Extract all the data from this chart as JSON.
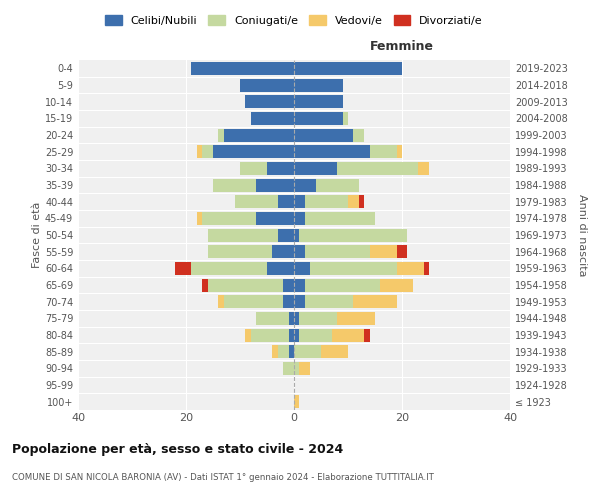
{
  "age_groups": [
    "100+",
    "95-99",
    "90-94",
    "85-89",
    "80-84",
    "75-79",
    "70-74",
    "65-69",
    "60-64",
    "55-59",
    "50-54",
    "45-49",
    "40-44",
    "35-39",
    "30-34",
    "25-29",
    "20-24",
    "15-19",
    "10-14",
    "5-9",
    "0-4"
  ],
  "birth_years": [
    "≤ 1923",
    "1924-1928",
    "1929-1933",
    "1934-1938",
    "1939-1943",
    "1944-1948",
    "1949-1953",
    "1954-1958",
    "1959-1963",
    "1964-1968",
    "1969-1973",
    "1974-1978",
    "1979-1983",
    "1984-1988",
    "1989-1993",
    "1994-1998",
    "1999-2003",
    "2004-2008",
    "2009-2013",
    "2014-2018",
    "2019-2023"
  ],
  "colors": {
    "celibi": "#3d6fad",
    "coniugati": "#c5d9a0",
    "vedovi": "#f5c96a",
    "divorziati": "#d03020"
  },
  "males": {
    "celibi": [
      0,
      0,
      0,
      1,
      1,
      1,
      2,
      2,
      5,
      4,
      3,
      7,
      3,
      7,
      5,
      15,
      13,
      8,
      9,
      10,
      19
    ],
    "coniugati": [
      0,
      0,
      2,
      2,
      7,
      6,
      11,
      14,
      14,
      12,
      13,
      10,
      8,
      8,
      5,
      2,
      1,
      0,
      0,
      0,
      0
    ],
    "vedovi": [
      0,
      0,
      0,
      1,
      1,
      0,
      1,
      0,
      0,
      0,
      0,
      1,
      0,
      0,
      0,
      1,
      0,
      0,
      0,
      0,
      0
    ],
    "divorziati": [
      0,
      0,
      0,
      0,
      0,
      0,
      0,
      1,
      3,
      0,
      0,
      0,
      0,
      0,
      0,
      0,
      0,
      0,
      0,
      0,
      0
    ]
  },
  "females": {
    "celibi": [
      0,
      0,
      0,
      0,
      1,
      1,
      2,
      2,
      3,
      2,
      1,
      2,
      2,
      4,
      8,
      14,
      11,
      9,
      9,
      9,
      20
    ],
    "coniugati": [
      0,
      0,
      1,
      5,
      6,
      7,
      9,
      14,
      16,
      12,
      20,
      13,
      8,
      8,
      15,
      5,
      2,
      1,
      0,
      0,
      0
    ],
    "vedovi": [
      1,
      0,
      2,
      5,
      6,
      7,
      8,
      6,
      5,
      5,
      0,
      0,
      2,
      0,
      2,
      1,
      0,
      0,
      0,
      0,
      0
    ],
    "divorziati": [
      0,
      0,
      0,
      0,
      1,
      0,
      0,
      0,
      1,
      2,
      0,
      0,
      1,
      0,
      0,
      0,
      0,
      0,
      0,
      0,
      0
    ]
  },
  "xlim": 40,
  "title": "Popolazione per età, sesso e stato civile - 2024",
  "subtitle": "COMUNE DI SAN NICOLA BARONIA (AV) - Dati ISTAT 1° gennaio 2024 - Elaborazione TUTTITALIA.IT",
  "ylabel_left": "Fasce di età",
  "ylabel_right": "Anni di nascita",
  "xlabel_femmine": "Femmine",
  "legend_labels": [
    "Celibi/Nubili",
    "Coniugati/e",
    "Vedovi/e",
    "Divorziati/e"
  ],
  "bg_color": "#f0f0f0"
}
